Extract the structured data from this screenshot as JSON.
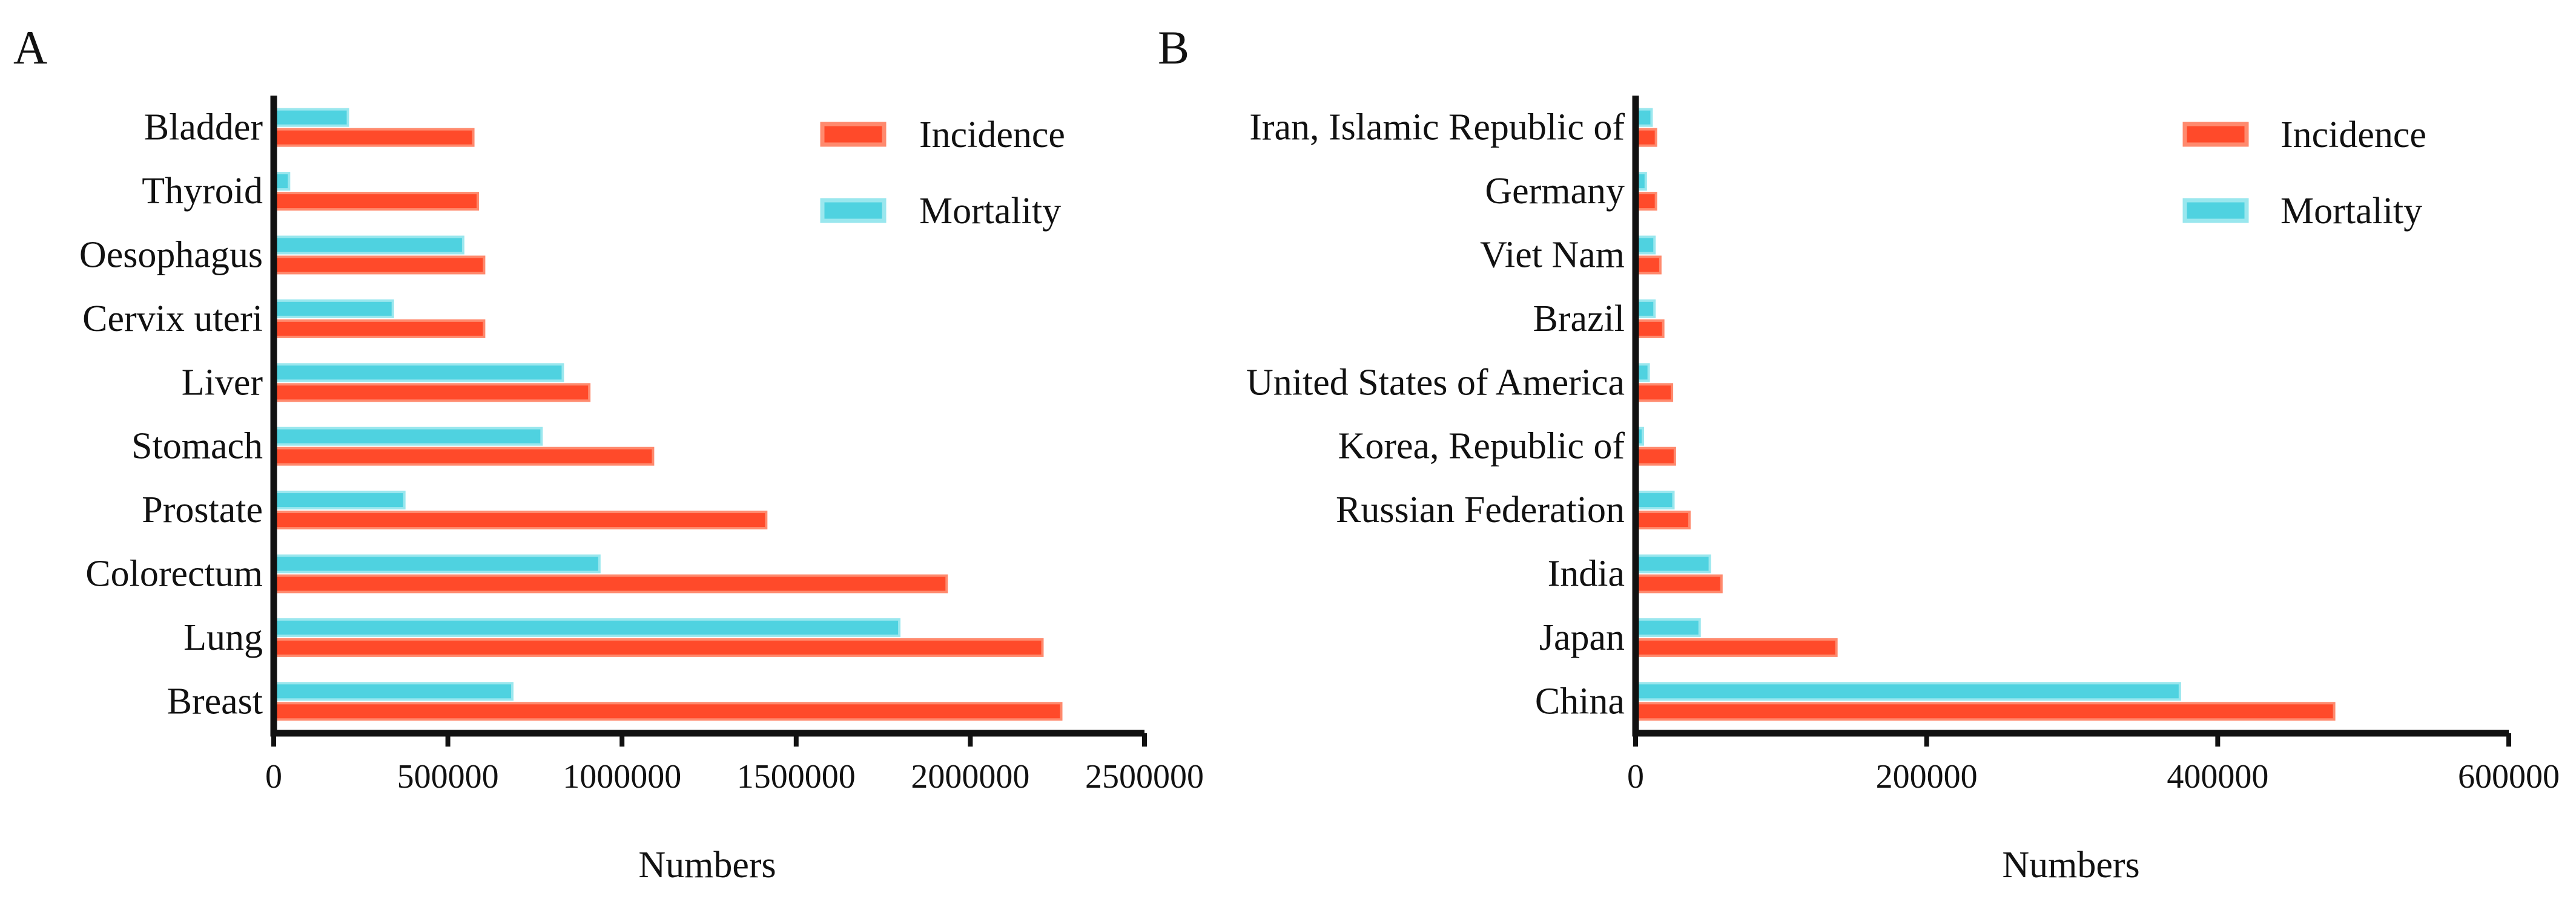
{
  "colors": {
    "incidence_fill": "#FF4A2A",
    "incidence_edge": "#FF8A6E",
    "mortality_fill": "#4FD2E0",
    "mortality_edge": "#9AE7EE",
    "axis": "#111111"
  },
  "chart_data": [
    {
      "panel": "A",
      "type": "bar",
      "orientation": "horizontal",
      "categories": [
        "Bladder",
        "Thyroid",
        "Oesophagus",
        "Cervix uteri",
        "Liver",
        "Stomach",
        "Prostate",
        "Colorectum",
        "Lung",
        "Breast"
      ],
      "series": [
        {
          "name": "Incidence",
          "color": "#FF4A2A",
          "values": [
            573000,
            586000,
            604000,
            604000,
            906000,
            1089000,
            1414000,
            1932000,
            2207000,
            2261000
          ]
        },
        {
          "name": "Mortality",
          "color": "#4FD2E0",
          "values": [
            213000,
            44000,
            544000,
            342000,
            830000,
            769000,
            375000,
            935000,
            1796000,
            685000
          ]
        }
      ],
      "xlabel": "Numbers",
      "ylabel": "",
      "xlim": [
        0,
        2500000
      ],
      "xticks": [
        0,
        500000,
        1000000,
        1500000,
        2000000,
        2500000
      ],
      "xtick_labels": [
        "0",
        "500000",
        "1000000",
        "1500000",
        "2000000",
        "2500000"
      ],
      "legend": [
        "Incidence",
        "Mortality"
      ],
      "legend_position": "top-right",
      "grid": false
    },
    {
      "panel": "B",
      "type": "bar",
      "orientation": "horizontal",
      "categories": [
        "Iran, Islamic Republic of",
        "Germany",
        "Viet Nam",
        "Brazil",
        "United States of America",
        "Korea, Republic of",
        "Russian Federation",
        "India",
        "Japan",
        "China"
      ],
      "series": [
        {
          "name": "Incidence",
          "color": "#FF4A2A",
          "values": [
            14000,
            14000,
            17000,
            19000,
            25000,
            27000,
            37000,
            59000,
            138000,
            480000
          ]
        },
        {
          "name": "Mortality",
          "color": "#4FD2E0",
          "values": [
            11000,
            7000,
            13000,
            13000,
            9000,
            5000,
            26000,
            51000,
            44000,
            374000
          ]
        }
      ],
      "xlabel": "Numbers",
      "ylabel": "",
      "xlim": [
        0,
        600000
      ],
      "xticks": [
        0,
        200000,
        400000,
        600000
      ],
      "xtick_labels": [
        "0",
        "200000",
        "400000",
        "600000"
      ],
      "legend": [
        "Incidence",
        "Mortality"
      ],
      "legend_position": "top-right",
      "grid": false
    }
  ]
}
